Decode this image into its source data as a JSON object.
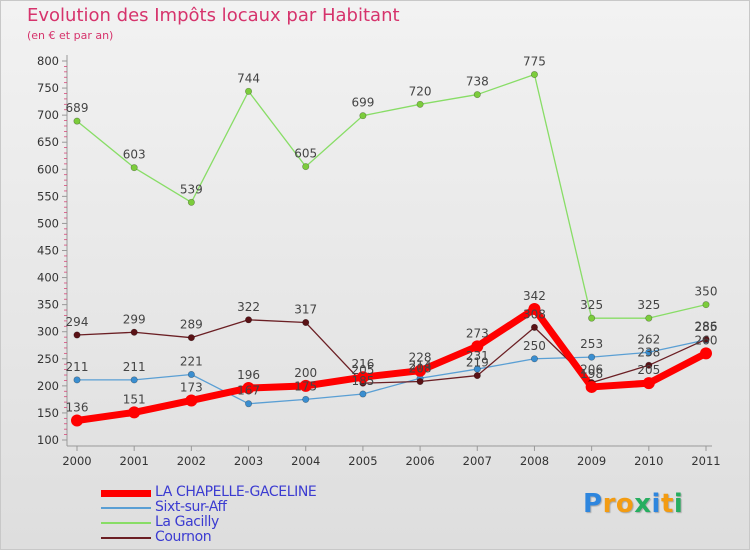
{
  "title": "Evolution des Impôts locaux par Habitant",
  "subtitle": "(en € et par an)",
  "logo": {
    "text": "Proxiti",
    "colors": [
      "#2e86de",
      "#f39c12",
      "#f39c12",
      "#27ae60",
      "#2e86de",
      "#f39c12",
      "#27ae60"
    ]
  },
  "chart_data": {
    "type": "line",
    "title": "Evolution des Impôts locaux par Habitant",
    "subtitle": "(en € et par an)",
    "x": [
      "2000",
      "2001",
      "2002",
      "2003",
      "2004",
      "2005",
      "2006",
      "2007",
      "2008",
      "2009",
      "2010",
      "2011"
    ],
    "ylim": [
      100,
      800
    ],
    "yticks": [
      "100",
      "150",
      "200",
      "250",
      "300",
      "350",
      "400",
      "450",
      "500",
      "550",
      "600",
      "650",
      "700",
      "750",
      "800"
    ],
    "grid": false,
    "legend_position": "bottom-left",
    "series": [
      {
        "name": "LA CHAPELLE-GACELINE",
        "color": "#ff0000",
        "values": [
          136,
          151,
          173,
          196,
          200,
          216,
          228,
          273,
          342,
          198,
          205,
          260
        ]
      },
      {
        "name": "Sixt-sur-Aff",
        "color": "#5a9fd4",
        "values": [
          211,
          211,
          221,
          167,
          175,
          185,
          214,
          231,
          250,
          253,
          262,
          285
        ]
      },
      {
        "name": "La Gacilly",
        "color": "#88dd66",
        "values": [
          689,
          603,
          539,
          744,
          605,
          699,
          720,
          738,
          775,
          325,
          325,
          350
        ]
      },
      {
        "name": "Cournon",
        "color": "#6b1f24",
        "values": [
          294,
          299,
          289,
          322,
          317,
          205,
          208,
          219,
          308,
          206,
          238,
          286
        ]
      }
    ],
    "value_labels": {
      "LA CHAPELLE-GACELINE": [
        "136",
        "151",
        "173",
        "196",
        "200",
        "216",
        "228",
        "273",
        "342",
        "198",
        "205",
        "260"
      ],
      "Sixt-sur-Aff": [
        "211",
        "211",
        "221",
        "167",
        "175",
        "185",
        "214",
        "231",
        "250",
        "253",
        "262",
        "285"
      ],
      "La Gacilly": [
        "689",
        "603",
        "539",
        "744",
        "605",
        "699",
        "720",
        "738",
        "775",
        "325",
        "325",
        "350"
      ],
      "Cournon": [
        "294",
        "299",
        "289",
        "322",
        "317",
        "205",
        "208",
        "219",
        "308",
        "206",
        "238",
        "286"
      ]
    }
  }
}
